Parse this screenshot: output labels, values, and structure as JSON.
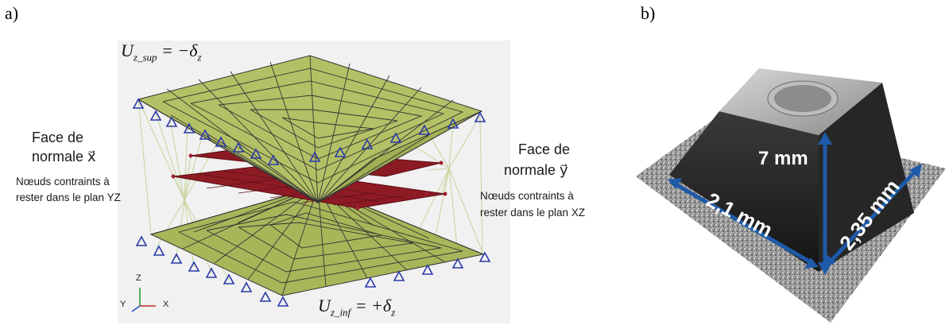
{
  "panel_a": {
    "label": "a)",
    "top_condition": {
      "main": "U",
      "sub": "z_sup",
      "rhs": " = −δ",
      "rhs_sub": "z"
    },
    "bottom_condition": {
      "main": "U",
      "sub": "z_inf",
      "rhs": " = +δ",
      "rhs_sub": "z"
    },
    "left_face": {
      "line1": "Face de",
      "line2": "normale x⃗",
      "note1": "Nœuds contraints à",
      "note2": "rester dans le plan YZ"
    },
    "right_face": {
      "line1": "Face de",
      "line2": "normale y⃗",
      "note1": "Nœuds contraints à",
      "note2": "rester dans le plan XZ"
    },
    "triad": {
      "z": "Z",
      "y": "Y",
      "x": "X"
    },
    "colors": {
      "mesh_green": "#a8b65a",
      "mesh_line": "#333333",
      "plate_red": "#8b1a22",
      "constraint_blue": "#2a3aa8",
      "rbe_line": "#c8d89a"
    }
  },
  "panel_b": {
    "label": "b)",
    "dimensions": {
      "height": "7 mm",
      "width": "2,1 mm",
      "depth": "2,35 mm"
    },
    "colors": {
      "arrow": "#1e5aa8",
      "body": "#1c1c1c"
    }
  }
}
